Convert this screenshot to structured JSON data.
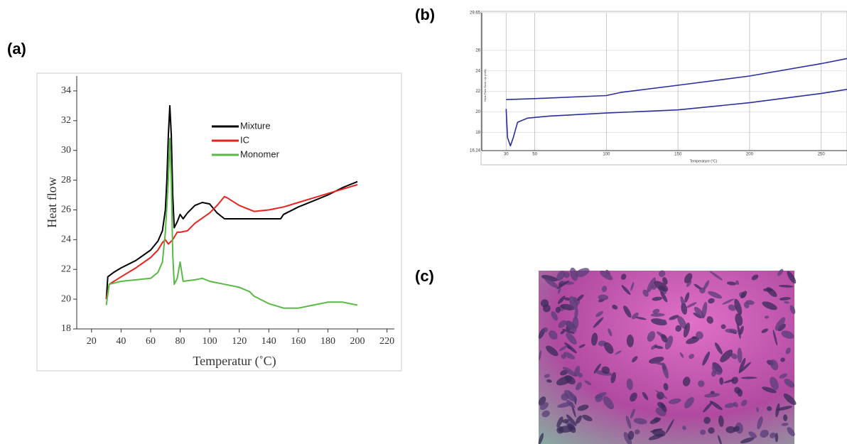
{
  "panel_labels": [
    "(a)",
    "(b)",
    "(c)"
  ],
  "chart_data": [
    {
      "type": "line",
      "y_label": "Heat flow",
      "x_label": "Temperatur (˚C)",
      "xlim": [
        10,
        225
      ],
      "ylim": [
        18,
        35
      ],
      "xticks": [
        20,
        40,
        60,
        80,
        100,
        120,
        140,
        160,
        180,
        200,
        220
      ],
      "yticks": [
        18,
        20,
        22,
        24,
        26,
        28,
        30,
        32,
        34
      ],
      "grid": false,
      "series": [
        {
          "name": "Mixture",
          "color": "#000000",
          "x": [
            30,
            31,
            35,
            40,
            50,
            60,
            65,
            68,
            70,
            71,
            72,
            73,
            74,
            75,
            76,
            78,
            80,
            82,
            85,
            90,
            95,
            100,
            105,
            110,
            120,
            130,
            140,
            148,
            150,
            160,
            170,
            180,
            190,
            200
          ],
          "values": [
            20.0,
            21.5,
            21.8,
            22.1,
            22.6,
            23.3,
            23.9,
            24.6,
            26,
            28,
            31,
            33,
            31,
            27,
            24.8,
            25.2,
            25.7,
            25.4,
            25.8,
            26.3,
            26.5,
            26.4,
            25.8,
            25.4,
            25.4,
            25.4,
            25.4,
            25.4,
            25.7,
            26.2,
            26.6,
            27.0,
            27.5,
            27.9
          ]
        },
        {
          "name": "IC",
          "color": "#e8231f",
          "x": [
            30,
            32,
            40,
            50,
            60,
            65,
            68,
            70,
            72,
            75,
            78,
            80,
            85,
            90,
            100,
            105,
            110,
            112,
            120,
            130,
            140,
            150,
            160,
            170,
            180,
            190,
            200
          ],
          "values": [
            20.0,
            21.0,
            21.5,
            22.1,
            22.8,
            23.3,
            23.8,
            24.0,
            23.7,
            24.0,
            24.5,
            24.5,
            24.6,
            25.1,
            25.8,
            26.3,
            26.9,
            26.8,
            26.3,
            25.9,
            26.0,
            26.2,
            26.5,
            26.8,
            27.1,
            27.4,
            27.7
          ]
        },
        {
          "name": "Monomer",
          "color": "#5ab946",
          "x": [
            30,
            32,
            40,
            50,
            60,
            65,
            68,
            70,
            72,
            73,
            74,
            75,
            76,
            78,
            80,
            82,
            90,
            95,
            100,
            110,
            120,
            127,
            130,
            140,
            150,
            160,
            170,
            180,
            190,
            200
          ],
          "values": [
            19.6,
            21.0,
            21.2,
            21.3,
            21.4,
            21.8,
            22.5,
            24.5,
            28,
            30.8,
            28,
            23,
            21,
            21.4,
            22.5,
            21.2,
            21.3,
            21.4,
            21.2,
            21.0,
            20.8,
            20.5,
            20.2,
            19.7,
            19.4,
            19.4,
            19.6,
            19.8,
            19.8,
            19.6
          ]
        }
      ]
    },
    {
      "type": "line",
      "y_label": "Heat Flow Endo Up (mW)",
      "x_label": "Temperature (°C)",
      "xlim": [
        13,
        268
      ],
      "ylim": [
        16.24,
        29.65
      ],
      "xticks": [
        30,
        50,
        100,
        150,
        200,
        250
      ],
      "yticks": [
        16.24,
        18,
        20,
        22,
        24,
        26,
        29.65
      ],
      "grid": true,
      "series": [
        {
          "color": "#2b2f9e",
          "x": [
            30,
            50,
            100,
            110,
            150,
            200,
            250,
            268
          ],
          "values": [
            21.2,
            21.3,
            21.6,
            21.9,
            22.6,
            23.5,
            24.7,
            25.2
          ]
        },
        {
          "color": "#2b2f9e",
          "x": [
            30,
            31,
            33,
            35,
            38,
            45,
            60,
            100,
            150,
            200,
            250,
            268
          ],
          "values": [
            20.3,
            17.5,
            16.7,
            17.5,
            19.0,
            19.4,
            19.6,
            19.9,
            20.2,
            20.9,
            21.8,
            22.2
          ]
        }
      ]
    }
  ]
}
